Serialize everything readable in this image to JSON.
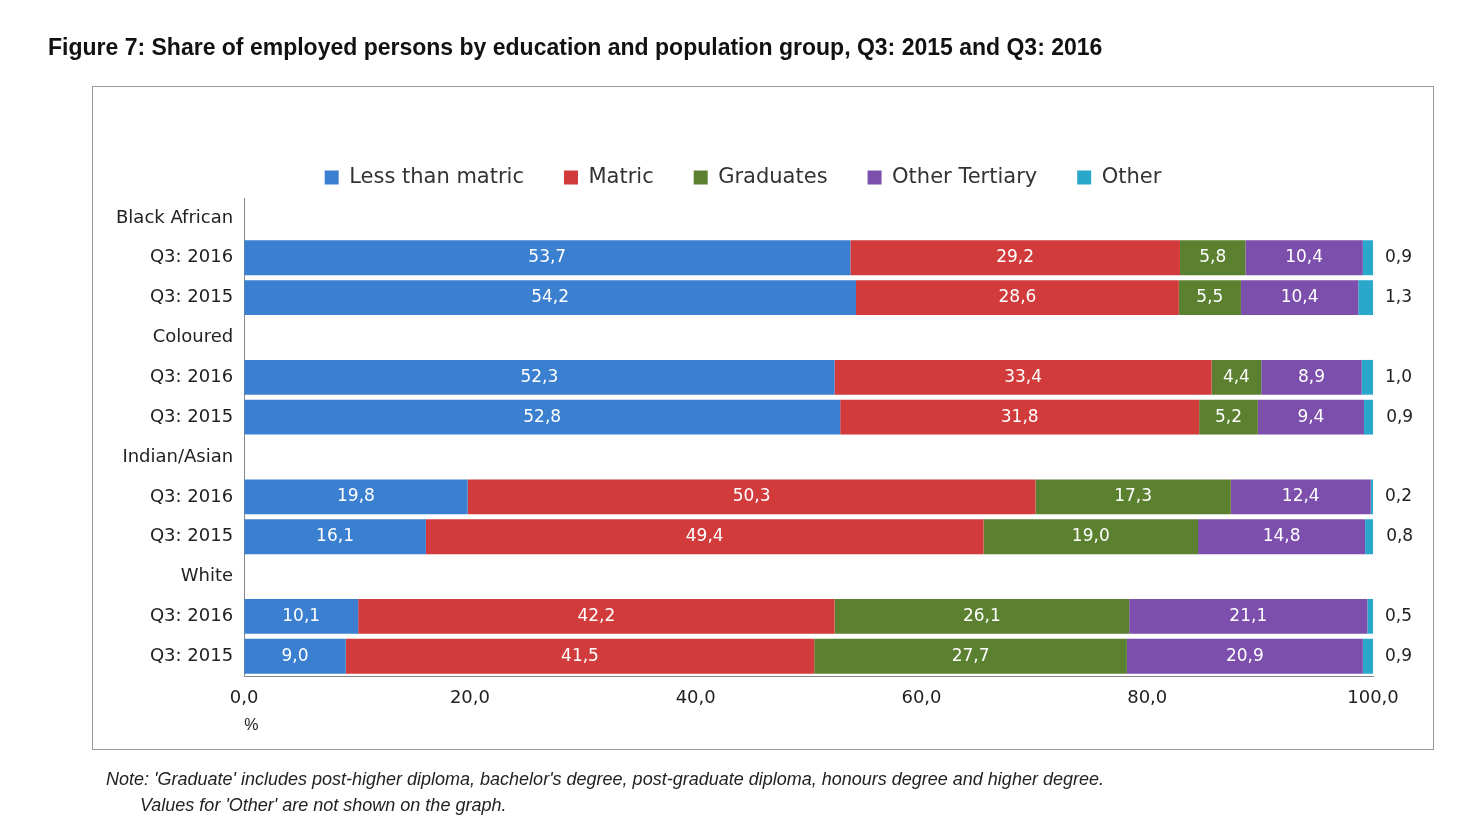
{
  "chart_data": {
    "type": "bar",
    "orientation": "horizontal",
    "stacked": true,
    "title": "Figure 7: Share of employed persons by education and population group, Q3: 2015 and Q3: 2016",
    "xlabel": "%",
    "categories": [
      "Black African",
      "Q3: 2016",
      "Q3: 2015",
      "Coloured",
      "Q3: 2016",
      "Q3: 2015",
      "Indian/Asian",
      "Q3: 2016",
      "Q3: 2015",
      "White",
      "Q3: 2016",
      "Q3: 2015"
    ],
    "series": [
      {
        "name": "Less than matric",
        "color": "#3b7fd1",
        "values": [
          null,
          53.7,
          54.2,
          null,
          52.3,
          52.8,
          null,
          19.8,
          16.1,
          null,
          10.1,
          9.0
        ],
        "value_labels": [
          null,
          "53,7",
          "54,2",
          null,
          "52,3",
          "52,8",
          null,
          "19,8",
          "16,1",
          null,
          "10,1",
          "9,0"
        ]
      },
      {
        "name": "Matric",
        "color": "#d23b3b",
        "values": [
          null,
          29.2,
          28.6,
          null,
          33.4,
          31.8,
          null,
          50.3,
          49.4,
          null,
          42.2,
          41.5
        ],
        "value_labels": [
          null,
          "29,2",
          "28,6",
          null,
          "33,4",
          "31,8",
          null,
          "50,3",
          "49,4",
          null,
          "42,2",
          "41,5"
        ]
      },
      {
        "name": "Graduates",
        "color": "#5b802f",
        "values": [
          null,
          5.8,
          5.5,
          null,
          4.4,
          5.2,
          null,
          17.3,
          19.0,
          null,
          26.1,
          27.7
        ],
        "value_labels": [
          null,
          "5,8",
          "5,5",
          null,
          "4,4",
          "5,2",
          null,
          "17,3",
          "19,0",
          null,
          "26,1",
          "27,7"
        ]
      },
      {
        "name": "Other Tertiary",
        "color": "#7b4fab",
        "values": [
          null,
          10.4,
          10.4,
          null,
          8.9,
          9.4,
          null,
          12.4,
          14.8,
          null,
          21.1,
          20.9
        ],
        "value_labels": [
          null,
          "10,4",
          "10,4",
          null,
          "8,9",
          "9,4",
          null,
          "12,4",
          "14,8",
          null,
          "21,1",
          "20,9"
        ]
      },
      {
        "name": "Other",
        "color": "#2aa8cc",
        "values": [
          null,
          0.9,
          1.3,
          null,
          1.0,
          0.9,
          null,
          0.2,
          0.8,
          null,
          0.5,
          0.9
        ],
        "value_labels": [
          null,
          "0,9",
          "1,3",
          null,
          "1,0",
          "0,9",
          null,
          "0,2",
          "0,8",
          null,
          "0,5",
          "0,9"
        ]
      }
    ],
    "xlim": [
      0,
      100
    ],
    "xticks": [
      {
        "value": 0,
        "label": "0,0"
      },
      {
        "value": 20,
        "label": "20,0"
      },
      {
        "value": 40,
        "label": "40,0"
      },
      {
        "value": 60,
        "label": "60,0"
      },
      {
        "value": 80,
        "label": "80,0"
      },
      {
        "value": 100,
        "label": "100,0"
      }
    ],
    "legend": "top",
    "annotations": [
      "Note: 'Graduate' includes post-higher diploma, bachelor's degree, post-graduate diploma, honours degree and higher degree.",
      "Values for 'Other' are not shown on the graph."
    ]
  }
}
